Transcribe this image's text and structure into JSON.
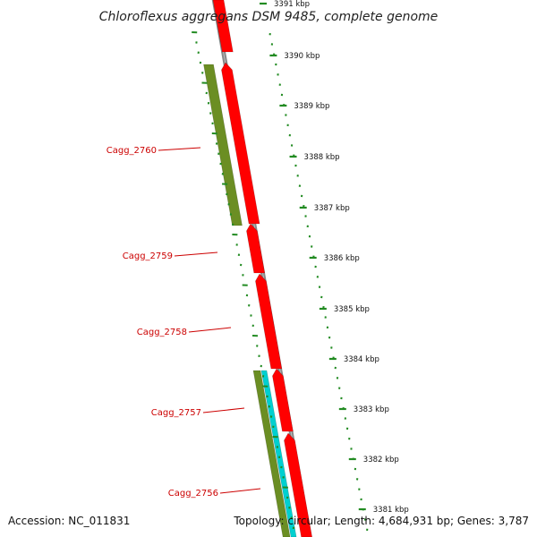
{
  "title": "Chloroflexus aggregans DSM 9485, complete genome",
  "accession": "Accession: NC_011831",
  "summary": "Topology: circular; Length: 4,684,931 bp; Genes: 3,787",
  "scale_ticks": [
    "3391 kbp",
    "3390 kbp",
    "3389 kbp",
    "3388 kbp",
    "3387 kbp",
    "3386 kbp",
    "3385 kbp",
    "3384 kbp",
    "3383 kbp",
    "3382 kbp",
    "3381 kbp"
  ],
  "gene_labels": [
    "Cagg_2760",
    "Cagg_2759",
    "Cagg_2758",
    "Cagg_2757",
    "Cagg_2756"
  ],
  "colors": {
    "cds": "#ff0000",
    "gene": "#6b8e23",
    "rna": "#00d0d0",
    "backbone": "#888888",
    "ticks": "#228b22",
    "label": "#cc0000"
  }
}
